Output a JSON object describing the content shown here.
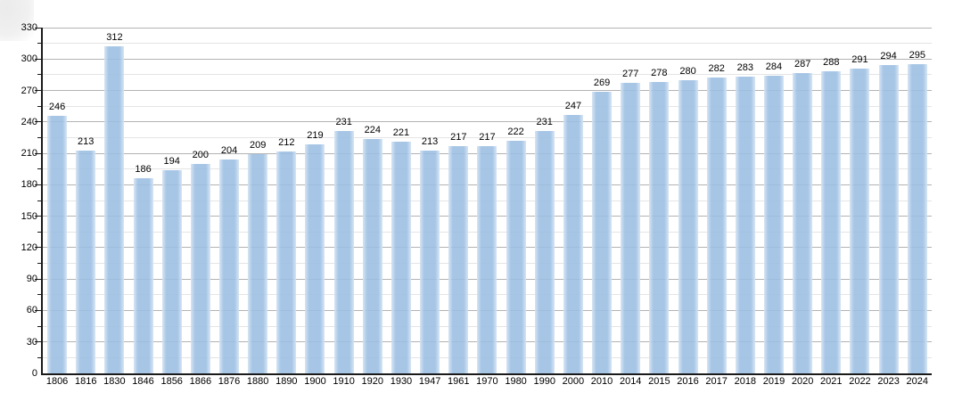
{
  "chart_data": {
    "type": "bar",
    "title": "",
    "xlabel": "",
    "ylabel": "",
    "categories": [
      "1806",
      "1816",
      "1830",
      "1846",
      "1856",
      "1866",
      "1876",
      "1880",
      "1890",
      "1900",
      "1910",
      "1920",
      "1930",
      "1947",
      "1961",
      "1970",
      "1980",
      "1990",
      "2000",
      "2010",
      "2014",
      "2015",
      "2016",
      "2017",
      "2018",
      "2019",
      "2020",
      "2021",
      "2022",
      "2023",
      "2024"
    ],
    "values": [
      246,
      213,
      312,
      186,
      194,
      200,
      204,
      209,
      212,
      219,
      231,
      224,
      221,
      213,
      217,
      217,
      222,
      231,
      247,
      269,
      277,
      278,
      280,
      282,
      283,
      284,
      287,
      288,
      291,
      294,
      295
    ],
    "value_labels_shown": true,
    "ylim": [
      0,
      330
    ],
    "y_tick_labels": [
      "0",
      "30",
      "60",
      "90",
      "120",
      "150",
      "180",
      "210",
      "240",
      "270",
      "300",
      "330"
    ],
    "ytick_major": 30,
    "ytick_minor": 15,
    "grid": "horizontal-major-and-minor",
    "legend": "none"
  },
  "colors": {
    "bar": "rgba(155,190,227,0.88)",
    "grid_major": "#b3b3b3",
    "grid_minor": "#e4e4e4",
    "axis": "#1a1a1a",
    "text": "#000000",
    "corner_artifact": "#ebebeb",
    "background": "#ffffff"
  }
}
